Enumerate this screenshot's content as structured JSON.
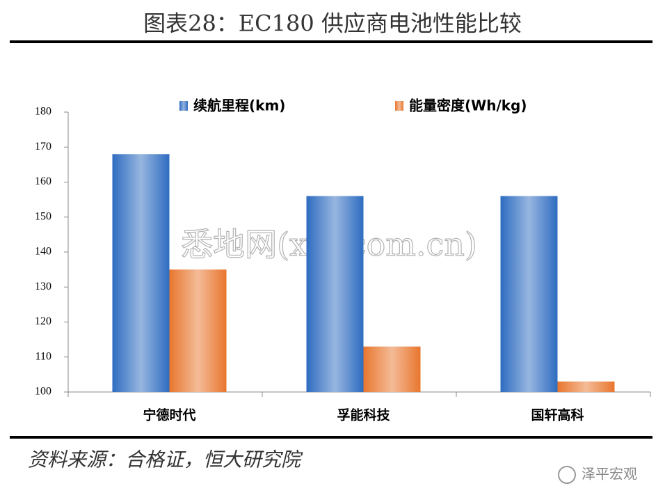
{
  "chart_data": {
    "type": "bar",
    "title": "图表28：EC180 供应商电池性能比较",
    "categories": [
      "宁德时代",
      "孚能科技",
      "国轩高科"
    ],
    "series": [
      {
        "name": "续航里程(km)",
        "color": "#2e6cc0",
        "values": [
          168,
          156,
          156
        ]
      },
      {
        "name": "能量密度(Wh/kg)",
        "color": "#e8762e",
        "values": [
          135,
          113,
          103
        ]
      }
    ],
    "ylim": [
      100,
      180
    ],
    "yticks": [
      100,
      110,
      120,
      130,
      140,
      150,
      160,
      170,
      180
    ],
    "grid": false,
    "legend": "top",
    "watermark": "悉地网(xidicom.cn)",
    "source": "资料来源：合格证，恒大研究院",
    "logo": "泽平宏观"
  }
}
